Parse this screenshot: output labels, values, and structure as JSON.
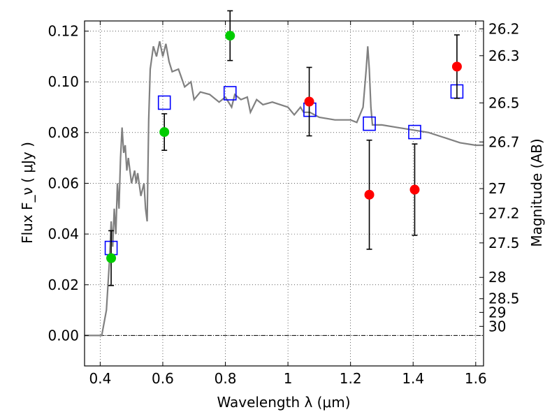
{
  "chart_data": {
    "type": "scatter",
    "xlabel": "Wavelength  λ (μm)",
    "ylabel": "Flux  F_ν ( μJy )",
    "y2label": "Magnitude (AB)",
    "xlim": [
      0.35,
      1.625
    ],
    "ylim": [
      -0.012,
      0.124
    ],
    "grid": true,
    "x_ticks": [
      0.4,
      0.6,
      0.8,
      1.0,
      1.2,
      1.4,
      1.6
    ],
    "x_tick_labels": [
      "0.4",
      "0.6",
      "0.8",
      "1",
      "1.2",
      "1.4",
      "1.6"
    ],
    "y_ticks": [
      0.0,
      0.02,
      0.04,
      0.06,
      0.08,
      0.1,
      0.12
    ],
    "y_tick_labels": [
      "0.00",
      "0.02",
      "0.04",
      "0.06",
      "0.08",
      "0.10",
      "0.12"
    ],
    "mag_ticks": [
      {
        "label": "26.2",
        "flux": 0.1209
      },
      {
        "label": "26.3",
        "flux": 0.1103
      },
      {
        "label": "26.5",
        "flux": 0.0917
      },
      {
        "label": "26.7",
        "flux": 0.0763
      },
      {
        "label": "27",
        "flux": 0.0579
      },
      {
        "label": "27.2",
        "flux": 0.0481
      },
      {
        "label": "27.5",
        "flux": 0.0365
      },
      {
        "label": "28",
        "flux": 0.0229
      },
      {
        "label": "28.5",
        "flux": 0.0145
      },
      {
        "label": "29",
        "flux": 0.0091
      },
      {
        "label": "30",
        "flux": 0.0036
      }
    ],
    "series": [
      {
        "name": "model spectrum",
        "kind": "line",
        "color": "#808080",
        "x": [
          0.35,
          0.405,
          0.42,
          0.43,
          0.435,
          0.44,
          0.445,
          0.45,
          0.455,
          0.46,
          0.465,
          0.47,
          0.475,
          0.48,
          0.485,
          0.49,
          0.5,
          0.51,
          0.515,
          0.52,
          0.53,
          0.54,
          0.545,
          0.55,
          0.555,
          0.56,
          0.57,
          0.58,
          0.59,
          0.6,
          0.61,
          0.62,
          0.63,
          0.65,
          0.67,
          0.69,
          0.7,
          0.72,
          0.75,
          0.78,
          0.8,
          0.82,
          0.83,
          0.85,
          0.87,
          0.88,
          0.9,
          0.92,
          0.95,
          1.0,
          1.02,
          1.04,
          1.05,
          1.07,
          1.1,
          1.15,
          1.2,
          1.22,
          1.24,
          1.25,
          1.255,
          1.26,
          1.265,
          1.27,
          1.3,
          1.35,
          1.4,
          1.45,
          1.5,
          1.55,
          1.6,
          1.625
        ],
        "y": [
          0.0,
          0.0,
          0.01,
          0.03,
          0.045,
          0.035,
          0.05,
          0.04,
          0.06,
          0.05,
          0.07,
          0.082,
          0.072,
          0.075,
          0.065,
          0.07,
          0.06,
          0.065,
          0.06,
          0.064,
          0.055,
          0.06,
          0.05,
          0.045,
          0.085,
          0.105,
          0.114,
          0.11,
          0.116,
          0.11,
          0.115,
          0.108,
          0.104,
          0.105,
          0.098,
          0.1,
          0.093,
          0.096,
          0.095,
          0.092,
          0.094,
          0.09,
          0.095,
          0.093,
          0.094,
          0.088,
          0.093,
          0.091,
          0.092,
          0.09,
          0.087,
          0.09,
          0.088,
          0.088,
          0.086,
          0.085,
          0.085,
          0.084,
          0.09,
          0.105,
          0.114,
          0.105,
          0.09,
          0.083,
          0.083,
          0.082,
          0.081,
          0.08,
          0.078,
          0.076,
          0.075,
          0.075
        ]
      },
      {
        "name": "model band fluxes",
        "kind": "open-square",
        "color": "#0000ff",
        "x": [
          0.435,
          0.605,
          0.815,
          1.07,
          1.26,
          1.405,
          1.54
        ],
        "y": [
          0.0345,
          0.0918,
          0.0955,
          0.089,
          0.0835,
          0.0802,
          0.0962
        ]
      },
      {
        "name": "observed flux (green)",
        "kind": "filled-circle",
        "color": "#00cc00",
        "x": [
          0.435,
          0.605,
          0.815
        ],
        "y": [
          0.0305,
          0.0802,
          0.1182
        ],
        "err": [
          0.0108,
          0.0072,
          0.0098
        ]
      },
      {
        "name": "observed flux (red)",
        "kind": "filled-circle",
        "color": "#ff0000",
        "x": [
          1.068,
          1.26,
          1.405,
          1.54
        ],
        "y": [
          0.0922,
          0.0555,
          0.0575,
          0.106
        ],
        "err": [
          0.0135,
          0.0215,
          0.018,
          0.0125
        ]
      }
    ]
  }
}
